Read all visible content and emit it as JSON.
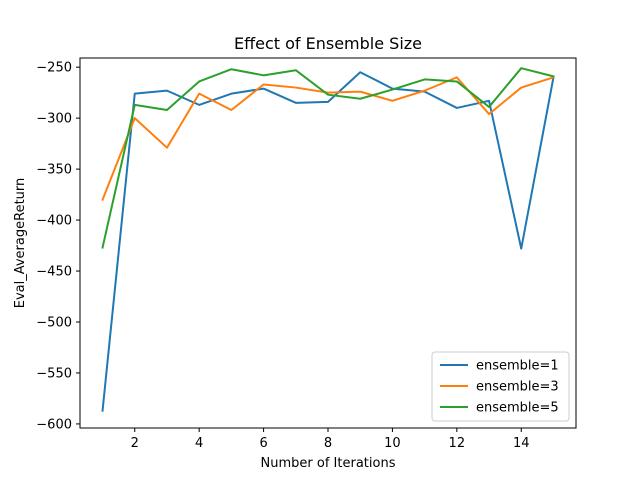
{
  "chart_data": {
    "type": "line",
    "title": "Effect of Ensemble Size",
    "xlabel": "Number of Iterations",
    "ylabel": "Eval_AverageReturn",
    "x": [
      1,
      2,
      3,
      4,
      5,
      6,
      7,
      8,
      9,
      10,
      11,
      12,
      13,
      14,
      15
    ],
    "xlim": [
      0.3,
      15.7
    ],
    "ylim": [
      -604,
      -241
    ],
    "xticks": [
      2,
      4,
      6,
      8,
      10,
      12,
      14
    ],
    "yticks": [
      -250,
      -300,
      -350,
      -400,
      -450,
      -500,
      -550,
      -600
    ],
    "xtick_labels": [
      "2",
      "4",
      "6",
      "8",
      "10",
      "12",
      "14"
    ],
    "ytick_labels": [
      "−250",
      "−300",
      "−350",
      "−400",
      "−450",
      "−500",
      "−550",
      "−600"
    ],
    "grid": false,
    "legend_position": "lower-right",
    "series": [
      {
        "name": "ensemble=1",
        "color": "#1f77b4",
        "values": [
          -587,
          -276,
          -273,
          -287,
          -276,
          -271,
          -285,
          -284,
          -255,
          -271,
          -274,
          -290,
          -283,
          -428,
          -260
        ]
      },
      {
        "name": "ensemble=3",
        "color": "#ff7f0e",
        "values": [
          -380,
          -300,
          -329,
          -276,
          -292,
          -267,
          -270,
          -275,
          -274,
          -283,
          -273,
          -260,
          -296,
          -270,
          -260
        ]
      },
      {
        "name": "ensemble=5",
        "color": "#2ca02c",
        "values": [
          -427,
          -287,
          -292,
          -264,
          -252,
          -258,
          -253,
          -277,
          -281,
          -272,
          -262,
          -264,
          -289,
          -251,
          -259
        ]
      }
    ]
  }
}
